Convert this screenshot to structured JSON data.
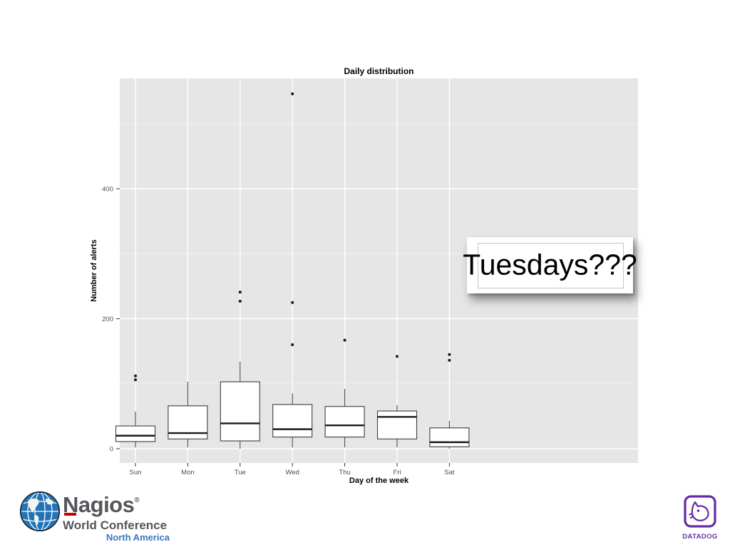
{
  "chart": {
    "panel_color": "#e6e6e6",
    "grid_color": "#ffffff",
    "box_fill": "#ffffff",
    "box_stroke": "#3c3c3c",
    "median_color": "#1a1a1a",
    "outlier_color": "#1a1a1a",
    "tick_color": "#333333",
    "tick_label_color": "#4d4d4d"
  },
  "chart_data": {
    "type": "boxplot",
    "title": "Daily distribution",
    "xlabel": "Day of the week",
    "ylabel": "Number of alerts",
    "ylim": [
      -20,
      570
    ],
    "grid": true,
    "yticks": [
      {
        "value": 0,
        "label": "0"
      },
      {
        "value": 200,
        "label": "200"
      },
      {
        "value": 400,
        "label": "400"
      }
    ],
    "minor_yticks": [
      100,
      300,
      500
    ],
    "categories": [
      "Sun",
      "Mon",
      "Tue",
      "Wed",
      "Thu",
      "Fri",
      "Sat"
    ],
    "series": [
      {
        "category": "Sun",
        "whisker_low": 2,
        "q1": 11,
        "median": 20,
        "q3": 35,
        "whisker_high": 57,
        "outliers": [
          106,
          112
        ]
      },
      {
        "category": "Mon",
        "whisker_low": 2,
        "q1": 15,
        "median": 24,
        "q3": 66,
        "whisker_high": 103,
        "outliers": []
      },
      {
        "category": "Tue",
        "whisker_low": 0,
        "q1": 12,
        "median": 39,
        "q3": 103,
        "whisker_high": 134,
        "outliers": [
          227,
          241
        ]
      },
      {
        "category": "Wed",
        "whisker_low": 2,
        "q1": 18,
        "median": 30,
        "q3": 68,
        "whisker_high": 85,
        "outliers": [
          160,
          225,
          546
        ]
      },
      {
        "category": "Thu",
        "whisker_low": 2,
        "q1": 18,
        "median": 36,
        "q3": 65,
        "whisker_high": 92,
        "outliers": [
          167
        ]
      },
      {
        "category": "Fri",
        "whisker_low": 2,
        "q1": 15,
        "median": 49,
        "q3": 58,
        "whisker_high": 67,
        "outliers": [
          142
        ]
      },
      {
        "category": "Sat",
        "whisker_low": 0,
        "q1": 3,
        "median": 10,
        "q3": 32,
        "whisker_high": 43,
        "outliers": [
          136,
          145
        ]
      }
    ]
  },
  "callout": {
    "text": "Tuesdays???"
  },
  "logos": {
    "nagios": {
      "name": "Nagios",
      "registered": "®",
      "line1": "World Conference",
      "line2": "North America",
      "text_color": "#54565a",
      "accent_red": "#cc0000",
      "blue": "#3a78bc"
    },
    "datadog": {
      "wordmark": "DATADOG",
      "purple": "#632ca6"
    }
  }
}
